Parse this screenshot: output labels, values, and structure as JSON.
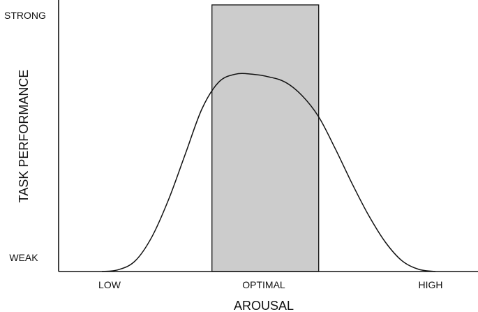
{
  "chart_data": {
    "type": "line",
    "title": "",
    "xlabel": "AROUSAL",
    "ylabel": "TASK PERFORMANCE",
    "x_tick_labels": [
      "LOW",
      "OPTIMAL",
      "HIGH"
    ],
    "y_tick_labels": [
      "STRONG",
      "WEAK"
    ],
    "x_tick_positions": [
      0,
      0.5,
      1
    ],
    "y_tick_positions": [
      1,
      0
    ],
    "xlim": [
      0,
      1
    ],
    "ylim": [
      0,
      1
    ],
    "grid": false,
    "legend": "none",
    "optimal_zone": {
      "x_start": 0.33,
      "x_end": 0.65,
      "fill_color": "#cccccc"
    },
    "series": [
      {
        "x": [
          0,
          0.05,
          0.1,
          0.15,
          0.2,
          0.25,
          0.3,
          0.35,
          0.4,
          0.45,
          0.5,
          0.55,
          0.6,
          0.65,
          0.7,
          0.75,
          0.8,
          0.85,
          0.9,
          0.95,
          1
        ],
        "y": [
          0,
          0.007,
          0.04,
          0.13,
          0.27,
          0.44,
          0.61,
          0.71,
          0.74,
          0.74,
          0.73,
          0.71,
          0.66,
          0.58,
          0.46,
          0.33,
          0.21,
          0.11,
          0.04,
          0.008,
          0
        ]
      }
    ],
    "colors": {
      "line": "#111111",
      "axis": "#111111",
      "zone": "#cccccc"
    }
  }
}
